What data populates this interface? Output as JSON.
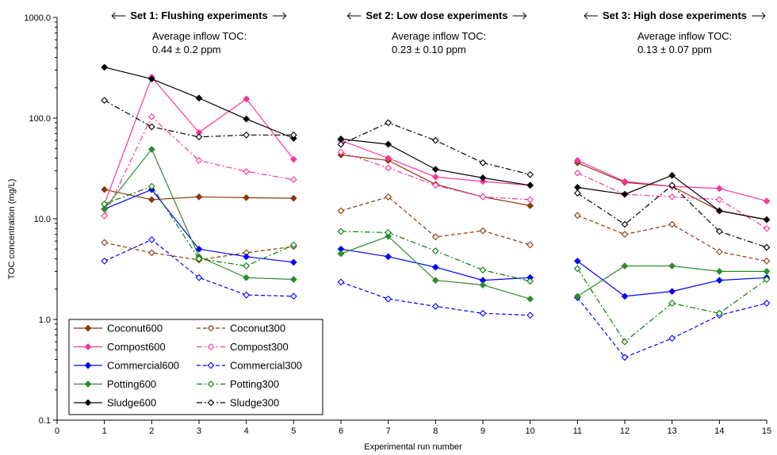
{
  "chart_data": {
    "type": "line",
    "xlabel": "Experimental run number",
    "ylabel": "TOC concentration (mg/L)",
    "xlim": [
      0,
      15
    ],
    "ylim": [
      0.1,
      1000
    ],
    "yscale": "log",
    "xticks": [
      "0",
      "1",
      "2",
      "3",
      "4",
      "5",
      "6",
      "7",
      "8",
      "9",
      "10",
      "11",
      "12",
      "13",
      "14",
      "15"
    ],
    "yticks": [
      "0.1",
      "1.0",
      "10.0",
      "100.0",
      "1000.0"
    ],
    "grid": false,
    "legend_position": "bottom-left",
    "annotations": [
      {
        "title": "Set 1: Flushing experiments",
        "text1": "Average inflow TOC:",
        "text2": "0.44 ± 0.2 ppm"
      },
      {
        "title": "Set  2: Low dose experiments",
        "text1": "Average inflow TOC:",
        "text2": "0.23 ± 0.10 ppm"
      },
      {
        "title": "Set 3: High dose experiments",
        "text1": "Average inflow TOC:",
        "text2": "0.13 ± 0.07 ppm"
      }
    ],
    "series": [
      {
        "name": "Coconut600",
        "color": "#8B3A0F",
        "dash": "solid",
        "marker": "filled",
        "segments": [
          {
            "x": [
              1,
              2,
              3,
              4,
              5
            ],
            "y": [
              19.5,
              15.5,
              16.5,
              16.2,
              16.0
            ]
          },
          {
            "x": [
              6,
              7,
              8,
              9,
              10
            ],
            "y": [
              43,
              38,
              22,
              16.5,
              13.5
            ]
          },
          {
            "x": [
              11,
              12,
              13,
              14,
              15
            ],
            "y": [
              36,
              23,
              21,
              12,
              9.8
            ]
          }
        ]
      },
      {
        "name": "Coconut300",
        "color": "#8B3A0F",
        "dash": "dash",
        "marker": "open",
        "segments": [
          {
            "x": [
              1,
              2,
              3,
              4,
              5
            ],
            "y": [
              5.8,
              4.6,
              3.9,
              4.6,
              5.3
            ]
          },
          {
            "x": [
              6,
              7,
              8,
              9,
              10
            ],
            "y": [
              12,
              16.5,
              6.6,
              7.6,
              5.5
            ]
          },
          {
            "x": [
              11,
              12,
              13,
              14,
              15
            ],
            "y": [
              10.8,
              7.0,
              8.8,
              4.7,
              3.8
            ]
          }
        ]
      },
      {
        "name": "Compost600",
        "color": "#FF3399",
        "dash": "solid",
        "marker": "filled",
        "segments": [
          {
            "x": [
              1,
              2,
              3,
              4,
              5
            ],
            "y": [
              14,
              255,
              72,
              155,
              39
            ]
          },
          {
            "x": [
              6,
              7,
              8,
              9,
              10
            ],
            "y": [
              60,
              40,
              26,
              23.5,
              21.5
            ]
          },
          {
            "x": [
              11,
              12,
              13,
              14,
              15
            ],
            "y": [
              38,
              23.5,
              21,
              20,
              15
            ]
          }
        ]
      },
      {
        "name": "Compost300",
        "color": "#FF3399",
        "dash": "dashdot",
        "marker": "open",
        "segments": [
          {
            "x": [
              1,
              2,
              3,
              4,
              5
            ],
            "y": [
              10.7,
              103,
              38,
              29.5,
              24.5
            ]
          },
          {
            "x": [
              6,
              7,
              8,
              9,
              10
            ],
            "y": [
              46,
              32,
              21.5,
              16.5,
              15.5
            ]
          },
          {
            "x": [
              11,
              12,
              13,
              14,
              15
            ],
            "y": [
              28.5,
              17.5,
              16.5,
              15.5,
              8
            ]
          }
        ]
      },
      {
        "name": "Commercial600",
        "color": "#0000FF",
        "dash": "solid",
        "marker": "filled",
        "segments": [
          {
            "x": [
              1,
              2,
              3,
              4,
              5
            ],
            "y": [
              12.5,
              19.5,
              5.0,
              4.2,
              3.7
            ]
          },
          {
            "x": [
              6,
              7,
              8,
              9,
              10
            ],
            "y": [
              5.0,
              4.2,
              3.3,
              2.45,
              2.6
            ]
          },
          {
            "x": [
              11,
              12,
              13,
              14,
              15
            ],
            "y": [
              3.8,
              1.7,
              1.9,
              2.45,
              2.6
            ]
          }
        ]
      },
      {
        "name": "Commercial300",
        "color": "#0000FF",
        "dash": "dash",
        "marker": "open",
        "segments": [
          {
            "x": [
              1,
              2,
              3,
              4,
              5
            ],
            "y": [
              3.8,
              6.2,
              2.6,
              1.75,
              1.7
            ]
          },
          {
            "x": [
              6,
              7,
              8,
              9,
              10
            ],
            "y": [
              2.35,
              1.6,
              1.35,
              1.15,
              1.1
            ]
          },
          {
            "x": [
              11,
              12,
              13,
              14,
              15
            ],
            "y": [
              1.65,
              0.42,
              0.65,
              1.1,
              1.45
            ]
          }
        ]
      },
      {
        "name": "Potting600",
        "color": "#2E8B2E",
        "dash": "solid",
        "marker": "filled",
        "segments": [
          {
            "x": [
              1,
              2,
              3,
              4,
              5
            ],
            "y": [
              12.5,
              49,
              4.2,
              2.6,
              2.5
            ]
          },
          {
            "x": [
              6,
              7,
              8,
              9,
              10
            ],
            "y": [
              4.5,
              6.7,
              2.45,
              2.2,
              1.6
            ]
          },
          {
            "x": [
              11,
              12,
              13,
              14,
              15
            ],
            "y": [
              1.7,
              3.4,
              3.4,
              3.0,
              3.0
            ]
          }
        ]
      },
      {
        "name": "Potting300",
        "color": "#008000",
        "dash": "dashdot",
        "marker": "open",
        "segments": [
          {
            "x": [
              1,
              2,
              3,
              4,
              5
            ],
            "y": [
              14,
              21,
              4.0,
              3.4,
              5.5
            ]
          },
          {
            "x": [
              6,
              7,
              8,
              9,
              10
            ],
            "y": [
              7.5,
              7.3,
              4.8,
              3.1,
              2.4
            ]
          },
          {
            "x": [
              11,
              12,
              13,
              14,
              15
            ],
            "y": [
              3.2,
              0.6,
              1.45,
              1.15,
              2.5
            ]
          }
        ]
      },
      {
        "name": "Sludge600",
        "color": "#000000",
        "dash": "solid",
        "marker": "filled",
        "segments": [
          {
            "x": [
              1,
              2,
              3,
              4,
              5
            ],
            "y": [
              320,
              245,
              158,
              98,
              63
            ]
          },
          {
            "x": [
              6,
              7,
              8,
              9,
              10
            ],
            "y": [
              62,
              55,
              31,
              25.5,
              21.5
            ]
          },
          {
            "x": [
              11,
              12,
              13,
              14,
              15
            ],
            "y": [
              20.5,
              17.5,
              27,
              12,
              9.8
            ]
          }
        ]
      },
      {
        "name": "Sludge300",
        "color": "#000000",
        "dash": "dashdot",
        "marker": "open",
        "segments": [
          {
            "x": [
              1,
              2,
              3,
              4,
              5
            ],
            "y": [
              150,
              82,
              65,
              68,
              68
            ]
          },
          {
            "x": [
              6,
              7,
              8,
              9,
              10
            ],
            "y": [
              55,
              90,
              60,
              36,
              27.5
            ]
          },
          {
            "x": [
              11,
              12,
              13,
              14,
              15
            ],
            "y": [
              18,
              8.8,
              21.5,
              7.5,
              5.2
            ]
          }
        ]
      }
    ]
  }
}
